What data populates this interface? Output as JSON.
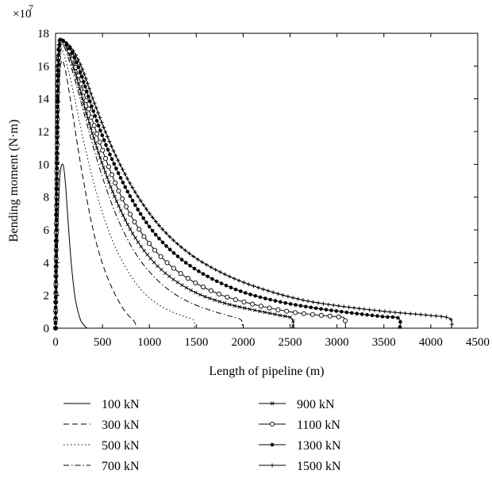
{
  "chart_data": {
    "type": "line",
    "xlabel": "Length of pipeline (m)",
    "ylabel": "Bending moment (N·m)",
    "y_scale_label": "×10",
    "y_scale_exponent": "7",
    "xlim": [
      0,
      4500
    ],
    "ylim": [
      0,
      18
    ],
    "x_ticks": [
      "0",
      "500",
      "1000",
      "1500",
      "2000",
      "2500",
      "3000",
      "3500",
      "4000",
      "4500"
    ],
    "y_ticks": [
      "0",
      "2",
      "4",
      "6",
      "8",
      "10",
      "12",
      "14",
      "16",
      "18"
    ],
    "grid": false,
    "legend_position": "bottom",
    "series": [
      {
        "name": "100 kN",
        "style": "solid",
        "marker": "none",
        "x": [
          0,
          10,
          25,
          45,
          70,
          90,
          110,
          140,
          170,
          210,
          260,
          300,
          325,
          340
        ],
        "y": [
          0,
          2,
          6,
          9.2,
          10.0,
          9.7,
          8.5,
          6.0,
          3.8,
          1.8,
          0.6,
          0.2,
          0.05,
          0
        ]
      },
      {
        "name": "300 kN",
        "style": "dashed",
        "marker": "none",
        "x": [
          0,
          10,
          25,
          45,
          65,
          85,
          110,
          140,
          190,
          250,
          320,
          400,
          480,
          560,
          640,
          720,
          790,
          840,
          870
        ],
        "y": [
          0,
          5,
          12,
          15.5,
          16.3,
          16.2,
          15.6,
          14.6,
          12.8,
          10.6,
          8.3,
          6.0,
          4.3,
          3.0,
          2.0,
          1.2,
          0.7,
          0.4,
          0
        ]
      },
      {
        "name": "500 kN",
        "style": "dotted",
        "marker": "none",
        "x": [
          0,
          10,
          25,
          45,
          65,
          85,
          110,
          160,
          230,
          320,
          420,
          520,
          640,
          780,
          920,
          1080,
          1240,
          1380,
          1470,
          1480
        ],
        "y": [
          0,
          5.5,
          13,
          16.2,
          16.9,
          16.8,
          16.3,
          15.2,
          13.3,
          10.9,
          8.6,
          6.7,
          4.9,
          3.4,
          2.3,
          1.5,
          1.0,
          0.7,
          0.5,
          0
        ]
      },
      {
        "name": "700 kN",
        "style": "dashdot",
        "marker": "none",
        "x": [
          0,
          10,
          25,
          45,
          65,
          90,
          130,
          200,
          300,
          420,
          560,
          700,
          860,
          1040,
          1240,
          1460,
          1700,
          1880,
          1980,
          1990
        ],
        "y": [
          0,
          6,
          14,
          16.8,
          17.3,
          17.2,
          16.6,
          15.3,
          13.2,
          10.7,
          8.2,
          6.2,
          4.5,
          3.2,
          2.2,
          1.5,
          1.0,
          0.7,
          0.5,
          0
        ]
      },
      {
        "name": "900 kN",
        "style": "solid",
        "marker": "x",
        "x": [
          0,
          10,
          25,
          45,
          65,
          90,
          140,
          220,
          330,
          470,
          640,
          820,
          1020,
          1250,
          1520,
          1820,
          2120,
          2380,
          2520,
          2530
        ],
        "y": [
          0,
          6.5,
          14.5,
          17.2,
          17.5,
          17.4,
          16.8,
          15.4,
          13.1,
          10.5,
          7.9,
          5.8,
          4.2,
          3.0,
          2.1,
          1.5,
          1.1,
          0.8,
          0.6,
          0
        ]
      },
      {
        "name": "1100 kN",
        "style": "solid",
        "marker": "o",
        "x": [
          0,
          10,
          25,
          45,
          65,
          90,
          150,
          240,
          370,
          530,
          720,
          930,
          1170,
          1450,
          1780,
          2150,
          2500,
          2800,
          3000,
          3080,
          3090
        ],
        "y": [
          0,
          7,
          15,
          17.4,
          17.6,
          17.5,
          16.9,
          15.5,
          13.1,
          10.4,
          7.8,
          5.7,
          4.1,
          2.9,
          2.0,
          1.4,
          1.0,
          0.8,
          0.7,
          0.6,
          0
        ]
      },
      {
        "name": "1300 kN",
        "style": "solid",
        "marker": "dot",
        "x": [
          0,
          10,
          25,
          45,
          65,
          90,
          160,
          260,
          400,
          580,
          800,
          1040,
          1320,
          1640,
          2000,
          2400,
          2800,
          3200,
          3500,
          3660,
          3670
        ],
        "y": [
          0,
          7,
          15.5,
          17.5,
          17.6,
          17.5,
          17.0,
          15.7,
          13.3,
          10.6,
          8.0,
          5.9,
          4.3,
          3.1,
          2.2,
          1.6,
          1.2,
          0.9,
          0.7,
          0.6,
          0
        ]
      },
      {
        "name": "1500 kN",
        "style": "solid",
        "marker": "plus",
        "x": [
          0,
          10,
          25,
          45,
          65,
          90,
          170,
          280,
          430,
          620,
          860,
          1130,
          1440,
          1800,
          2200,
          2650,
          3100,
          3550,
          3950,
          4200,
          4220
        ],
        "y": [
          0,
          7.5,
          16,
          17.6,
          17.6,
          17.5,
          17.1,
          15.9,
          13.5,
          10.8,
          8.2,
          6.1,
          4.5,
          3.3,
          2.4,
          1.7,
          1.3,
          1.0,
          0.8,
          0.6,
          0
        ]
      }
    ]
  }
}
